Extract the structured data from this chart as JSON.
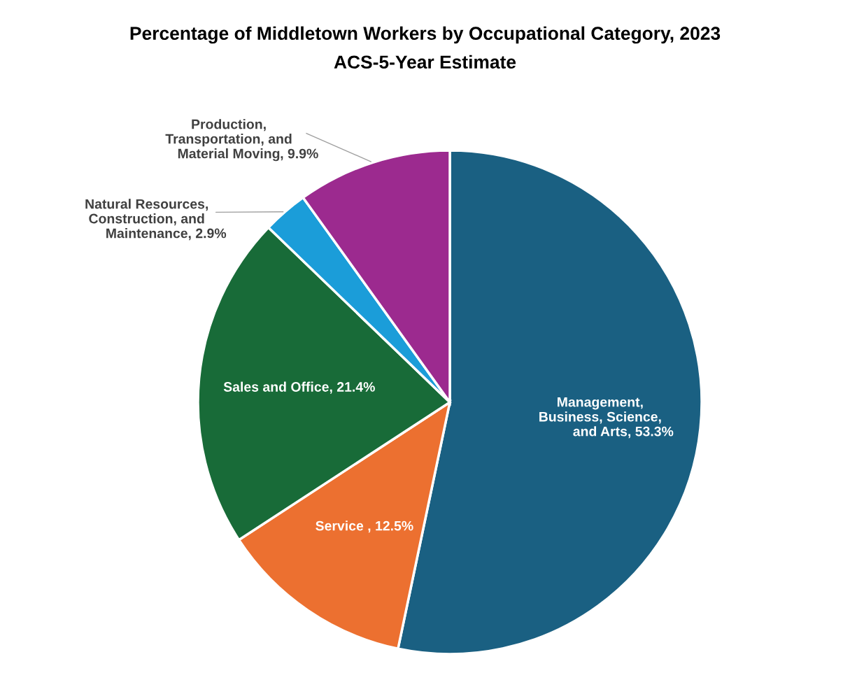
{
  "chart_data": {
    "type": "pie",
    "title": "Percentage of Middletown Workers by Occupational Category, 2023",
    "subtitle": "ACS-5-Year Estimate",
    "categories": [
      "Management,\nBusiness, Science,\nand Arts",
      "Service ",
      "Sales and Office",
      "Natural Resources,\nConstruction, and\nMaintenance",
      "Production,\nTransportation, and\nMaterial Moving"
    ],
    "values": [
      53.3,
      12.5,
      21.4,
      2.9,
      9.9
    ],
    "colors": [
      "#1a6082",
      "#ec7030",
      "#186b38",
      "#1b9dd9",
      "#9c2a8f"
    ],
    "value_labels": [
      ", 53.3%",
      ", 12.5%",
      ", 21.4%",
      ", 2.9%",
      ", 9.9%"
    ]
  }
}
